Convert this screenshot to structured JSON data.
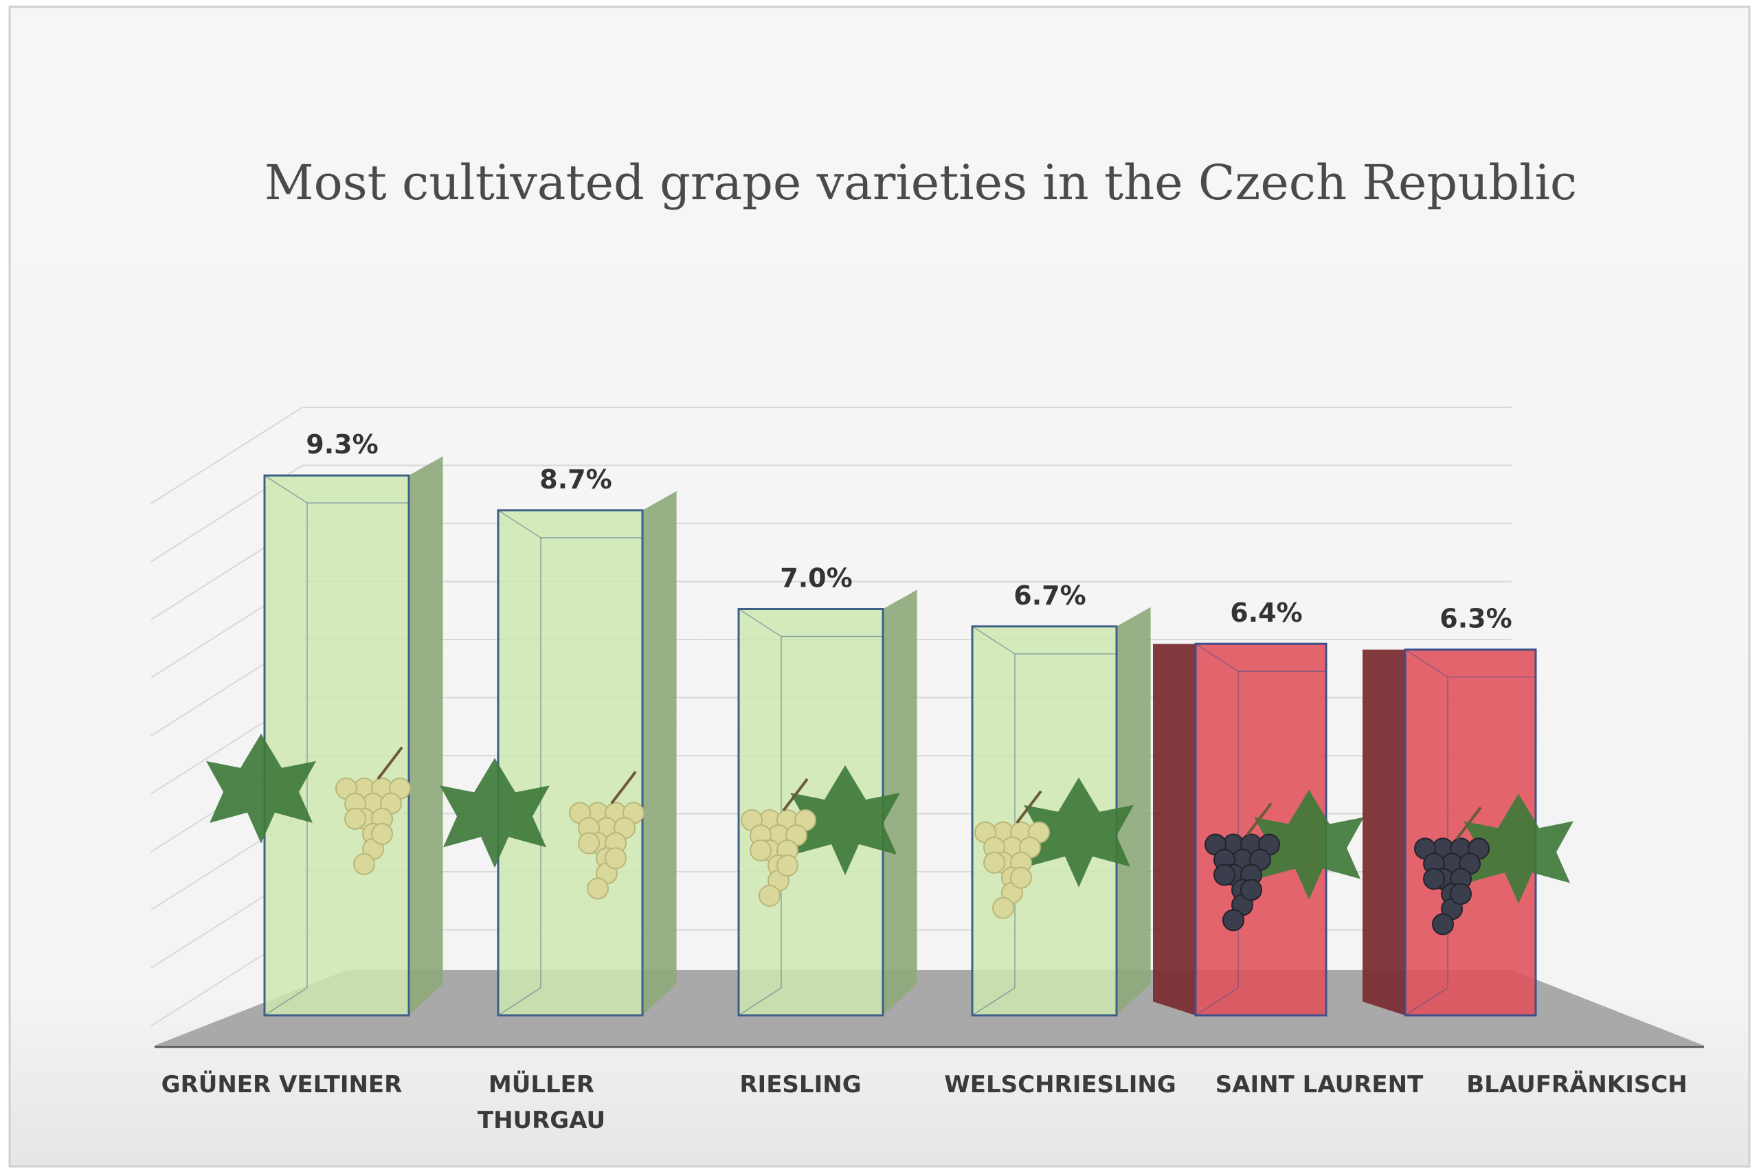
{
  "chart_data": {
    "type": "bar",
    "title": "Most cultivated grape varieties in the Czech Republic",
    "xlabel": "",
    "ylabel": "",
    "ylim": [
      0,
      10
    ],
    "grid": true,
    "categories": [
      [
        "GRÜNER VELTINER"
      ],
      [
        "MÜLLER",
        "THURGAU"
      ],
      [
        "RIESLING"
      ],
      [
        "WELSCHRIESLING"
      ],
      [
        "SAINT LAURENT"
      ],
      [
        "BLAUFRÄNKISCH"
      ]
    ],
    "values": [
      9.3,
      8.7,
      7.0,
      6.7,
      6.4,
      6.3
    ],
    "value_labels": [
      "9.3%",
      "8.7%",
      "7.0%",
      "6.7%",
      "6.4%",
      "6.3%"
    ],
    "grape_color": [
      "white",
      "white",
      "white",
      "white",
      "red",
      "red"
    ]
  },
  "colors": {
    "white_front": "#cfe8b0",
    "white_side": "#8ea87a",
    "white_edge": "#3e5f8a",
    "red_front": "#e0505a",
    "red_side": "#7a2e34",
    "red_edge": "#3e4f8a",
    "floor": "#a9a9a9",
    "grid": "#d8d8d8",
    "grape_white": "#d9d79a",
    "grape_red": "#3b3e4c",
    "leaf": "#3f7a3a"
  }
}
